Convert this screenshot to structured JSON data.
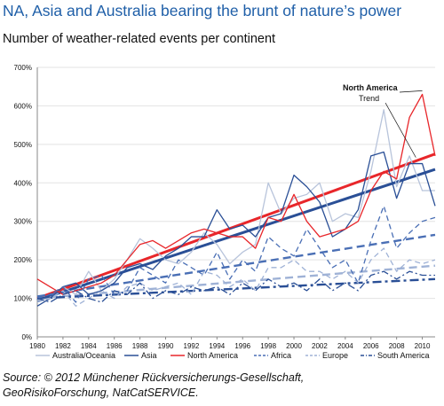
{
  "title": "NA, Asia and Australia bearing the brunt of nature’s power",
  "subtitle": "Number of weather-related events per continent",
  "source_line1": "Source: © 2012 Münchener Rückversicherungs-Gesellschaft,",
  "source_line2": "GeoRisikoForschung, NatCatSERVICE.",
  "chart_data": {
    "type": "line",
    "x": [
      1980,
      1981,
      1982,
      1983,
      1984,
      1985,
      1986,
      1987,
      1988,
      1989,
      1990,
      1991,
      1992,
      1993,
      1994,
      1995,
      1996,
      1997,
      1998,
      1999,
      2000,
      2001,
      2002,
      2003,
      2004,
      2005,
      2006,
      2007,
      2008,
      2009,
      2010,
      2011
    ],
    "x_ticks": [
      "1980",
      "1982",
      "1984",
      "1986",
      "1988",
      "1990",
      "1992",
      "1994",
      "1996",
      "1998",
      "2000",
      "2002",
      "2004",
      "2006",
      "2008",
      "2010"
    ],
    "y_ticks": [
      "0%",
      "100%",
      "200%",
      "300%",
      "400%",
      "500%",
      "600%",
      "700%"
    ],
    "ylim": [
      0,
      700
    ],
    "grid": true,
    "annotation_label": "North America",
    "annotation_trend": "Trend",
    "legend_position": "bottom",
    "series": [
      {
        "name": "Australia/Oceania",
        "style": "solid",
        "color": "#b8c4db",
        "values": [
          95,
          100,
          130,
          110,
          170,
          120,
          150,
          200,
          255,
          230,
          200,
          190,
          220,
          270,
          240,
          190,
          220,
          240,
          400,
          320,
          360,
          370,
          400,
          300,
          320,
          310,
          430,
          590,
          390,
          470,
          380,
          380
        ]
      },
      {
        "name": "Asia",
        "style": "solid",
        "color": "#2a4f96",
        "values": [
          80,
          100,
          130,
          140,
          110,
          120,
          140,
          180,
          190,
          175,
          210,
          230,
          260,
          260,
          330,
          280,
          290,
          260,
          310,
          320,
          420,
          390,
          350,
          260,
          280,
          330,
          470,
          480,
          360,
          450,
          450,
          340
        ]
      },
      {
        "name": "North America",
        "style": "solid",
        "color": "#e8262a",
        "values": [
          150,
          130,
          110,
          120,
          130,
          140,
          160,
          200,
          240,
          250,
          230,
          250,
          270,
          280,
          270,
          260,
          260,
          230,
          310,
          300,
          370,
          300,
          260,
          270,
          280,
          300,
          380,
          430,
          410,
          570,
          630,
          470
        ]
      },
      {
        "name": "Africa",
        "style": "dash",
        "color": "#4a6fb5",
        "values": [
          100,
          110,
          130,
          90,
          150,
          160,
          110,
          120,
          180,
          160,
          140,
          200,
          180,
          160,
          220,
          150,
          200,
          170,
          260,
          230,
          210,
          280,
          230,
          180,
          200,
          140,
          250,
          340,
          230,
          270,
          300,
          310
        ]
      },
      {
        "name": "Europe",
        "style": "dash",
        "color": "#9fb2d6",
        "values": [
          90,
          100,
          120,
          80,
          100,
          120,
          100,
          130,
          140,
          120,
          130,
          140,
          110,
          170,
          160,
          130,
          150,
          120,
          180,
          180,
          200,
          170,
          170,
          150,
          170,
          140,
          200,
          230,
          170,
          200,
          190,
          200
        ]
      },
      {
        "name": "South America",
        "style": "dashdot",
        "color": "#2a4f96",
        "values": [
          100,
          90,
          110,
          120,
          100,
          90,
          120,
          110,
          140,
          100,
          120,
          110,
          130,
          120,
          130,
          110,
          140,
          120,
          150,
          130,
          140,
          120,
          150,
          120,
          140,
          120,
          160,
          170,
          150,
          170,
          160,
          160
        ]
      }
    ],
    "trends": [
      {
        "name": "North America",
        "color": "#e8262a",
        "start": 100,
        "end": 475,
        "style": "solid"
      },
      {
        "name": "Asia",
        "color": "#2a4f96",
        "start": 95,
        "end": 435,
        "style": "solid"
      },
      {
        "name": "Africa",
        "color": "#4a6fb5",
        "start": 105,
        "end": 265,
        "style": "dash"
      },
      {
        "name": "Europe",
        "color": "#9fb2d6",
        "start": 100,
        "end": 185,
        "style": "dash"
      },
      {
        "name": "South America",
        "color": "#2a4f96",
        "start": 100,
        "end": 150,
        "style": "dashdot"
      }
    ]
  }
}
